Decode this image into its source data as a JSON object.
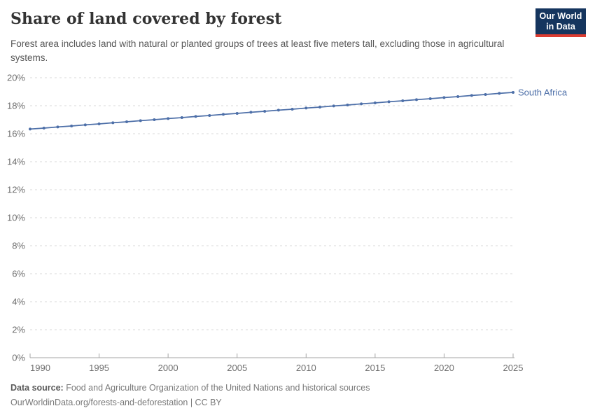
{
  "header": {
    "title": "Share of land covered by forest",
    "subtitle": "Forest area includes land with natural or planted groups of trees at least five meters tall, excluding those in agricultural systems.",
    "logo_line1": "Our World",
    "logo_line2": "in Data"
  },
  "footer": {
    "data_source_label": "Data source:",
    "data_source_text": "Food and Agriculture Organization of the United Nations and historical sources",
    "link_line": "OurWorldinData.org/forests-and-deforestation | CC BY"
  },
  "colors": {
    "series_blue": "#4d6fa8",
    "grid": "#dadada",
    "axis_line": "#a5a5a5",
    "axis_text": "#6e6e6e",
    "logo_navy": "#15355e",
    "logo_red": "#dc3c31"
  },
  "chart_data": {
    "type": "line",
    "title": "Share of land covered by forest",
    "xlabel": "",
    "ylabel": "",
    "xlim": [
      1990,
      2025
    ],
    "ylim": [
      0,
      20
    ],
    "grid": "horizontal-dashed",
    "legend_position": "end-of-line-label",
    "x_ticks": [
      {
        "v": 1990,
        "label": "1990"
      },
      {
        "v": 1995,
        "label": "1995"
      },
      {
        "v": 2000,
        "label": "2000"
      },
      {
        "v": 2005,
        "label": "2005"
      },
      {
        "v": 2010,
        "label": "2010"
      },
      {
        "v": 2015,
        "label": "2015"
      },
      {
        "v": 2020,
        "label": "2020"
      },
      {
        "v": 2025,
        "label": "2025"
      }
    ],
    "y_ticks": [
      {
        "v": 0,
        "label": "0%"
      },
      {
        "v": 2,
        "label": "2%"
      },
      {
        "v": 4,
        "label": "4%"
      },
      {
        "v": 6,
        "label": "6%"
      },
      {
        "v": 8,
        "label": "8%"
      },
      {
        "v": 10,
        "label": "10%"
      },
      {
        "v": 12,
        "label": "12%"
      },
      {
        "v": 14,
        "label": "14%"
      },
      {
        "v": 16,
        "label": "16%"
      },
      {
        "v": 18,
        "label": "18%"
      },
      {
        "v": 20,
        "label": "20%"
      }
    ],
    "series": [
      {
        "name": "South Africa",
        "color": "#4d6fa8",
        "x": [
          1990,
          1991,
          1992,
          1993,
          1994,
          1995,
          1996,
          1997,
          1998,
          1999,
          2000,
          2001,
          2002,
          2003,
          2004,
          2005,
          2006,
          2007,
          2008,
          2009,
          2010,
          2011,
          2012,
          2013,
          2014,
          2015,
          2016,
          2017,
          2018,
          2019,
          2020,
          2021,
          2022,
          2023,
          2024,
          2025
        ],
        "values": [
          16.33,
          16.4,
          16.48,
          16.55,
          16.63,
          16.7,
          16.78,
          16.85,
          16.93,
          17.0,
          17.08,
          17.15,
          17.23,
          17.3,
          17.38,
          17.45,
          17.53,
          17.6,
          17.68,
          17.75,
          17.83,
          17.9,
          17.98,
          18.05,
          18.13,
          18.2,
          18.28,
          18.35,
          18.43,
          18.5,
          18.58,
          18.65,
          18.73,
          18.8,
          18.88,
          18.95
        ]
      }
    ]
  }
}
